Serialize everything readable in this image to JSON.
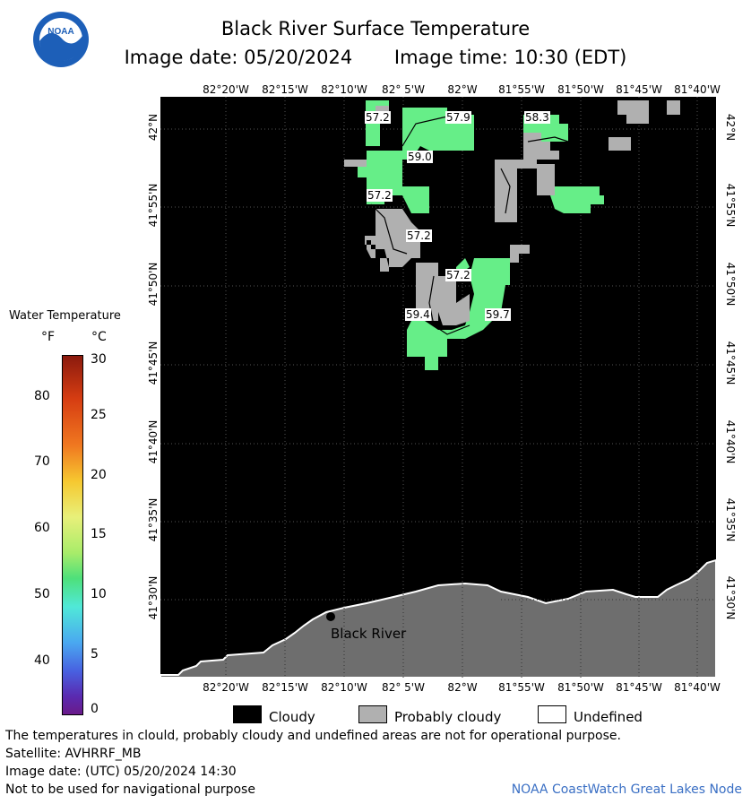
{
  "header": {
    "title": "Black River Surface Temperature",
    "image_date": "Image date: 05/20/2024",
    "image_time": "Image time: 10:30 (EDT)"
  },
  "lon_ticks": [
    "82°20'W",
    "82°15'W",
    "82°10'W",
    "82° 5'W",
    "82°W",
    "81°55'W",
    "81°50'W",
    "81°45'W",
    "81°40'W"
  ],
  "lat_ticks": [
    "42°N",
    "41°55'N",
    "41°50'N",
    "41°45'N",
    "41°40'N",
    "41°35'N",
    "41°30'N"
  ],
  "temperature_labels": [
    "57.2",
    "57.9",
    "58.3",
    "59.0",
    "57.2",
    "57.2",
    "57.2",
    "59.4",
    "59.7"
  ],
  "place_label": "Black River",
  "legend": {
    "title": "Water Temperature",
    "unit_f": "°F",
    "unit_c": "°C",
    "f_ticks": [
      "80",
      "70",
      "60",
      "50",
      "40"
    ],
    "c_ticks": [
      "30",
      "25",
      "20",
      "15",
      "10",
      "5",
      "0"
    ]
  },
  "cloud_legend": {
    "cloudy": "Cloudy",
    "probably_cloudy": "Probably cloudy",
    "undefined": "Undefined",
    "colors": {
      "cloudy": "#000000",
      "probably_cloudy": "#b0b0b0",
      "undefined": "#ffffff",
      "land": "#6e6e6e",
      "water_temp": "#66ee88"
    }
  },
  "footer": {
    "disclaimer": "The temperatures in clould, probably cloudy and undefined areas are not for operational purpose.",
    "satellite": "Satellite: AVHRRF_MB",
    "utc_date": "Image date: (UTC) 05/20/2024  14:30",
    "nav_warning": "Not to be used for navigational purpose",
    "credit": "NOAA CoastWatch Great Lakes Node"
  }
}
